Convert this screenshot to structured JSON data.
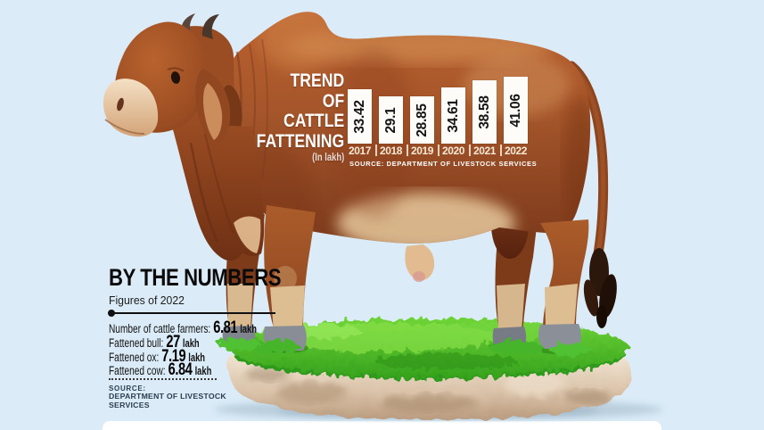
{
  "page": {
    "background": "#dbecf8",
    "card_edge_color": "#ffffff"
  },
  "chart": {
    "title_lines": [
      "TREND",
      "OF",
      "CATTLE",
      "FATTENING"
    ],
    "unit_note": "(In lakh)",
    "source": "SOURCE: DEPARTMENT OF LIVESTOCK SERVICES"
  },
  "chart_data": {
    "type": "bar",
    "title": "Trend of Cattle Fattening",
    "unit": "lakh",
    "categories": [
      "2017",
      "2018",
      "2019",
      "2020",
      "2021",
      "2022"
    ],
    "values": [
      33.42,
      29.1,
      28.85,
      34.61,
      38.58,
      41.06
    ],
    "ylim": [
      0,
      41.06
    ],
    "bar_color": "#fdfcf9",
    "value_label_color": "#141414",
    "category_label_color": "#f6e9d6",
    "title_color": "#ffffff",
    "legend": "none",
    "grid": false,
    "source": "SOURCE: DEPARTMENT OF LIVESTOCK SERVICES"
  },
  "numbers_panel": {
    "title": "BY THE NUMBERS",
    "subtitle": "Figures of 2022",
    "items": [
      {
        "label": "Number of cattle farmers:",
        "value": "6.81",
        "unit": "lakh"
      },
      {
        "label": "Fattened bull:",
        "value": "27",
        "unit": "lakh"
      },
      {
        "label": "Fattened ox:",
        "value": "7.19",
        "unit": "lakh"
      },
      {
        "label": "Fattened cow:",
        "value": "6.84",
        "unit": "lakh"
      }
    ],
    "source_label": "SOURCE:",
    "source_lines": [
      "DEPARTMENT OF LIVESTOCK",
      "SERVICES"
    ],
    "text_color": "#0b0b0b",
    "source_color": "#2b3d4e"
  },
  "illustration": {
    "subject": "brahman-bull-standing-on-grass-topped-rock",
    "colors": {
      "hide": "#a4552a",
      "hide_dark": "#7c3a1c",
      "hide_light": "#cf8c52",
      "muzzle": "#eed7b4",
      "lower_leg": "#ddbd92",
      "hoof": "#868b94",
      "grass": "#46b82b",
      "grass_light": "#8ce24a",
      "grass_dark": "#2f9a1c",
      "rock_light": "#f1e4d2",
      "rock_dark": "#ba9c7f",
      "ground_shadow": "#9fb6c6"
    }
  }
}
